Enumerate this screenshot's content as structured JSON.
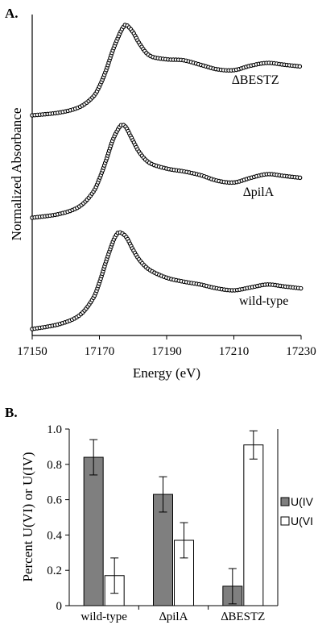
{
  "chart_data": [
    {
      "type": "line",
      "panel_label": "A.",
      "xlabel": "Energy (eV)",
      "ylabel": "Normalized Absorbance",
      "xlim": [
        17150,
        17230
      ],
      "x_ticks": [
        "17150",
        "17170",
        "17190",
        "17210",
        "17230"
      ],
      "y_ticks": [],
      "marker": "open-circle",
      "series": [
        {
          "name": "∆BESTZ",
          "x": [
            17150,
            17158,
            17164,
            17168,
            17170,
            17172,
            17174,
            17176,
            17177,
            17178,
            17180,
            17182,
            17185,
            17190,
            17195,
            17200,
            17205,
            17210,
            17215,
            17220,
            17225,
            17230
          ],
          "y": [
            0.0,
            0.03,
            0.09,
            0.2,
            0.32,
            0.5,
            0.72,
            0.9,
            0.97,
            1.0,
            0.92,
            0.79,
            0.66,
            0.62,
            0.61,
            0.56,
            0.51,
            0.5,
            0.55,
            0.58,
            0.56,
            0.54
          ]
        },
        {
          "name": "∆pilA",
          "x": [
            17150,
            17158,
            17164,
            17168,
            17170,
            17172,
            17174,
            17176,
            17177,
            17178,
            17180,
            17182,
            17185,
            17190,
            17195,
            17200,
            17205,
            17210,
            17215,
            17220,
            17225,
            17230
          ],
          "y": [
            0.0,
            0.04,
            0.12,
            0.27,
            0.42,
            0.62,
            0.84,
            0.98,
            1.0,
            0.97,
            0.83,
            0.7,
            0.59,
            0.53,
            0.5,
            0.46,
            0.4,
            0.38,
            0.43,
            0.47,
            0.45,
            0.43
          ]
        },
        {
          "name": "wild-type",
          "x": [
            17150,
            17158,
            17164,
            17168,
            17170,
            17172,
            17174,
            17175,
            17176,
            17178,
            17180,
            17182,
            17185,
            17190,
            17195,
            17200,
            17205,
            17210,
            17215,
            17220,
            17225,
            17230
          ],
          "y": [
            0.0,
            0.05,
            0.14,
            0.31,
            0.48,
            0.7,
            0.9,
            0.97,
            1.0,
            0.95,
            0.82,
            0.71,
            0.61,
            0.53,
            0.49,
            0.46,
            0.42,
            0.4,
            0.43,
            0.46,
            0.44,
            0.42
          ]
        }
      ]
    },
    {
      "type": "bar",
      "panel_label": "B.",
      "xlabel": "",
      "ylabel": "Percent U(VI) or U(IV)",
      "ylim": [
        0,
        1.0
      ],
      "y_ticks": [
        "0",
        "0.2",
        "0.4",
        "0.6",
        "0.8",
        "1.0"
      ],
      "categories": [
        "wild-type",
        "∆pilA",
        "∆BESTZ"
      ],
      "legend_position": "right",
      "series": [
        {
          "name": "U(IV",
          "color": "#7f7f7f",
          "values": [
            0.84,
            0.63,
            0.11
          ],
          "errors": [
            0.1,
            0.1,
            0.1
          ]
        },
        {
          "name": "U(VI",
          "color": "#ffffff",
          "values": [
            0.17,
            0.37,
            0.91
          ],
          "errors": [
            0.1,
            0.1,
            0.08
          ]
        }
      ]
    }
  ]
}
